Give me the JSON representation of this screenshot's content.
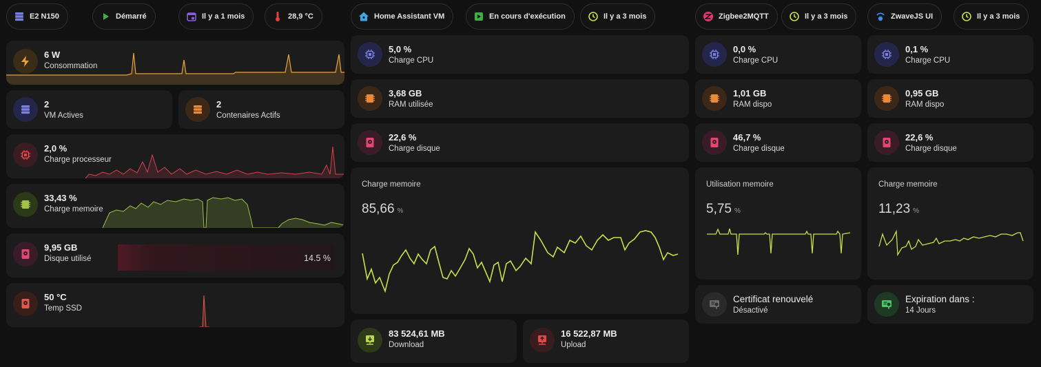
{
  "colors": {
    "accent_green": "#c6e24a",
    "power": "#e8a33a",
    "cpu": "#7b7fe0",
    "ram": "#e88a3a",
    "disk": "#e0486f",
    "temp": "#e0584a",
    "memgreen": "#9fc24a",
    "net_down": "#b8d84a",
    "net_up": "#e0484a"
  },
  "header": {
    "chips": [
      {
        "label": "E2 N150",
        "icon": "server-icon"
      },
      {
        "label": "Démarré",
        "icon": "play-icon"
      },
      {
        "label": "Il y a 1 mois",
        "icon": "calendar-icon"
      },
      {
        "label": "28,9 °C",
        "icon": "thermometer-icon"
      },
      {
        "label": "Home Assistant VM",
        "icon": "home-assistant-icon"
      },
      {
        "label": "En cours d'exécution",
        "icon": "play-box-icon"
      },
      {
        "label": "Il y a 3 mois",
        "icon": "clock-icon"
      },
      {
        "label": "Zigbee2MQTT",
        "icon": "zigbee-icon"
      },
      {
        "label": "Il y a 3 mois",
        "icon": "clock-icon"
      },
      {
        "label": "ZwaveJS UI",
        "icon": "zwave-icon"
      },
      {
        "label": "Il y a 3 mois",
        "icon": "clock-icon"
      }
    ]
  },
  "host": {
    "power": {
      "value": "6 W",
      "label": "Consommation"
    },
    "vms": {
      "value": "2",
      "label": "VM Actives"
    },
    "containers": {
      "value": "2",
      "label": "Contenaires Actifs"
    },
    "cpu": {
      "value": "2,0 %",
      "label": "Charge processeur"
    },
    "mem": {
      "value": "33,43 %",
      "label": "Charge memoire"
    },
    "disk": {
      "value": "9,95 GB",
      "label": "Disque utilisé",
      "percent": "14.5 %",
      "fraction": 0.145
    },
    "temp": {
      "value": "50 °C",
      "label": "Temp SSD"
    }
  },
  "ha_vm": {
    "cpu": {
      "value": "5,0 %",
      "label": "Charge CPU"
    },
    "ram": {
      "value": "3,68 GB",
      "label": "RAM utilisée"
    },
    "disk": {
      "value": "22,6 %",
      "label": "Charge disque"
    },
    "mem_graph": {
      "title": "Charge memoire",
      "value": "85,66",
      "unit": "%"
    },
    "download": {
      "value": "83 524,61 MB",
      "label": "Download"
    },
    "upload": {
      "value": "16 522,87 MB",
      "label": "Upload"
    }
  },
  "zigbee": {
    "cpu": {
      "value": "0,0 %",
      "label": "Charge CPU"
    },
    "ram": {
      "value": "1,01 GB",
      "label": "RAM dispo"
    },
    "disk": {
      "value": "46,7 %",
      "label": "Charge disque"
    },
    "mem_graph": {
      "title": "Utilisation memoire",
      "value": "5,75",
      "unit": "%"
    },
    "cert": {
      "value": "Certificat renouvelé",
      "label": "Désactivé"
    }
  },
  "zwave": {
    "cpu": {
      "value": "0,1 %",
      "label": "Charge CPU"
    },
    "ram": {
      "value": "0,95 GB",
      "label": "RAM dispo"
    },
    "disk": {
      "value": "22,6 %",
      "label": "Charge disque"
    },
    "mem_graph": {
      "title": "Charge memoire",
      "value": "11,23",
      "unit": "%"
    },
    "expiry": {
      "value": "Expiration dans :",
      "label": "14 Jours"
    }
  }
}
